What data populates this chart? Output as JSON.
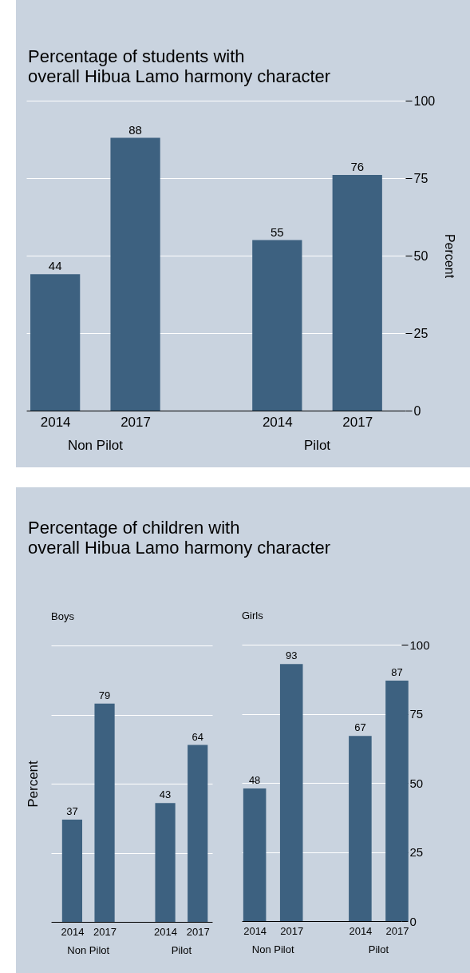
{
  "chart_data": [
    {
      "type": "bar",
      "title": "Percentage of students with\noverall Hibua Lamo harmony character",
      "ylabel": "Percent",
      "categories": [
        "2014",
        "2017",
        "2014",
        "2017"
      ],
      "values": [
        44,
        88,
        55,
        76
      ],
      "color": "#3d6180",
      "ylim": [
        0,
        100
      ],
      "yticks": [
        0,
        25,
        50,
        75,
        100
      ],
      "grid": true,
      "data_labels": true,
      "annotations": [
        "Non Pilot",
        "Pilot"
      ]
    },
    {
      "type": "bar",
      "title": "Percentage of children with\noverall Hibua Lamo harmony character",
      "subtitle": "Boys",
      "ylabel": "Percent",
      "categories": [
        "2014",
        "2017",
        "2014",
        "2017"
      ],
      "values": [
        37,
        79,
        43,
        64
      ],
      "color": "#3d6180",
      "ylim": [
        0,
        100
      ],
      "yticks": [
        0,
        25,
        50,
        75,
        100
      ],
      "grid": true,
      "tick_labels": "x",
      "data_labels": true,
      "annotations": [
        "Non Pilot",
        "Pilot"
      ]
    },
    {
      "type": "bar",
      "subtitle": "Girls",
      "categories": [
        "2014",
        "2017",
        "2014",
        "2017"
      ],
      "values": [
        48,
        93,
        67,
        87
      ],
      "color": "#3d6180",
      "ylim": [
        0,
        100
      ],
      "yticks": [
        0,
        25,
        50,
        75,
        100
      ],
      "grid": true,
      "data_labels": true,
      "annotations": [
        "Non Pilot",
        "Pilot"
      ]
    }
  ]
}
